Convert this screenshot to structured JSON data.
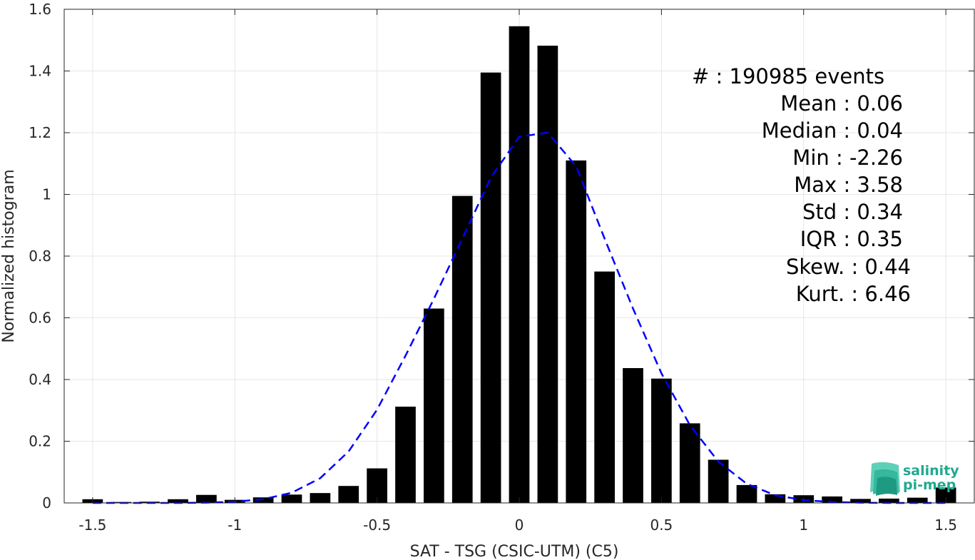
{
  "chart_data": {
    "type": "bar",
    "xlabel": "SAT - TSG (CSIC-UTM) (C5)",
    "ylabel": "Normalized histogram",
    "xlim": [
      -1.6,
      1.6
    ],
    "ylim": [
      0,
      1.6
    ],
    "xticks": [
      "-1.5",
      "-1",
      "-0.5",
      "0",
      "0.5",
      "1",
      "1.5"
    ],
    "xtick_values": [
      -1.5,
      -1,
      -0.5,
      0,
      0.5,
      1,
      1.5
    ],
    "yticks": [
      "0",
      "0.2",
      "0.4",
      "0.6",
      "0.8",
      "1",
      "1.2",
      "1.4",
      "1.6"
    ],
    "ytick_values": [
      0,
      0.2,
      0.4,
      0.6,
      0.8,
      1,
      1.2,
      1.4,
      1.6
    ],
    "grid": true,
    "bar_color": "#000000",
    "bin_width": 0.1,
    "bins": [
      {
        "x": -1.5,
        "y": 0.012
      },
      {
        "x": -1.4,
        "y": 0.003
      },
      {
        "x": -1.3,
        "y": 0.004
      },
      {
        "x": -1.2,
        "y": 0.012
      },
      {
        "x": -1.1,
        "y": 0.026
      },
      {
        "x": -1.0,
        "y": 0.01
      },
      {
        "x": -0.9,
        "y": 0.018
      },
      {
        "x": -0.8,
        "y": 0.027
      },
      {
        "x": -0.7,
        "y": 0.032
      },
      {
        "x": -0.6,
        "y": 0.055
      },
      {
        "x": -0.5,
        "y": 0.112
      },
      {
        "x": -0.4,
        "y": 0.312
      },
      {
        "x": -0.3,
        "y": 0.63
      },
      {
        "x": -0.2,
        "y": 0.995
      },
      {
        "x": -0.1,
        "y": 1.395
      },
      {
        "x": 0.0,
        "y": 1.545
      },
      {
        "x": 0.1,
        "y": 1.482
      },
      {
        "x": 0.2,
        "y": 1.11
      },
      {
        "x": 0.3,
        "y": 0.75
      },
      {
        "x": 0.4,
        "y": 0.437
      },
      {
        "x": 0.5,
        "y": 0.403
      },
      {
        "x": 0.6,
        "y": 0.258
      },
      {
        "x": 0.7,
        "y": 0.14
      },
      {
        "x": 0.8,
        "y": 0.058
      },
      {
        "x": 0.9,
        "y": 0.028
      },
      {
        "x": 1.0,
        "y": 0.025
      },
      {
        "x": 1.1,
        "y": 0.021
      },
      {
        "x": 1.2,
        "y": 0.013
      },
      {
        "x": 1.3,
        "y": 0.014
      },
      {
        "x": 1.4,
        "y": 0.017
      },
      {
        "x": 1.5,
        "y": 0.05
      }
    ],
    "fit_curve": {
      "style": "dashed",
      "color": "#0000ff",
      "points": [
        [
          -1.5,
          0.0
        ],
        [
          -1.4,
          0.0
        ],
        [
          -1.3,
          0.0
        ],
        [
          -1.2,
          0.0
        ],
        [
          -1.1,
          0.001
        ],
        [
          -1.0,
          0.004
        ],
        [
          -0.9,
          0.012
        ],
        [
          -0.8,
          0.033
        ],
        [
          -0.7,
          0.08
        ],
        [
          -0.6,
          0.167
        ],
        [
          -0.5,
          0.302
        ],
        [
          -0.4,
          0.477
        ],
        [
          -0.3,
          0.662
        ],
        [
          -0.2,
          0.857
        ],
        [
          -0.1,
          1.054
        ],
        [
          0.0,
          1.187
        ],
        [
          0.1,
          1.2
        ],
        [
          0.2,
          1.091
        ],
        [
          0.3,
          0.857
        ],
        [
          0.4,
          0.63
        ],
        [
          0.5,
          0.42
        ],
        [
          0.6,
          0.252
        ],
        [
          0.7,
          0.134
        ],
        [
          0.8,
          0.062
        ],
        [
          0.9,
          0.025
        ],
        [
          1.0,
          0.009
        ],
        [
          1.1,
          0.003
        ],
        [
          1.2,
          0.001
        ],
        [
          1.3,
          0.0
        ],
        [
          1.4,
          0.0
        ],
        [
          1.5,
          0.0
        ]
      ]
    },
    "annotations": [
      "#  : 190985 events",
      "Mean : 0.06",
      "Median : 0.04",
      "Min : -2.26",
      "Max : 3.58",
      "Std : 0.34",
      "IQR : 0.35",
      "Skew. : 0.44",
      "Kurt. : 6.46"
    ]
  },
  "logo": {
    "line1": "salinity",
    "line2": "pi-mep",
    "color": "#1fa88f"
  }
}
